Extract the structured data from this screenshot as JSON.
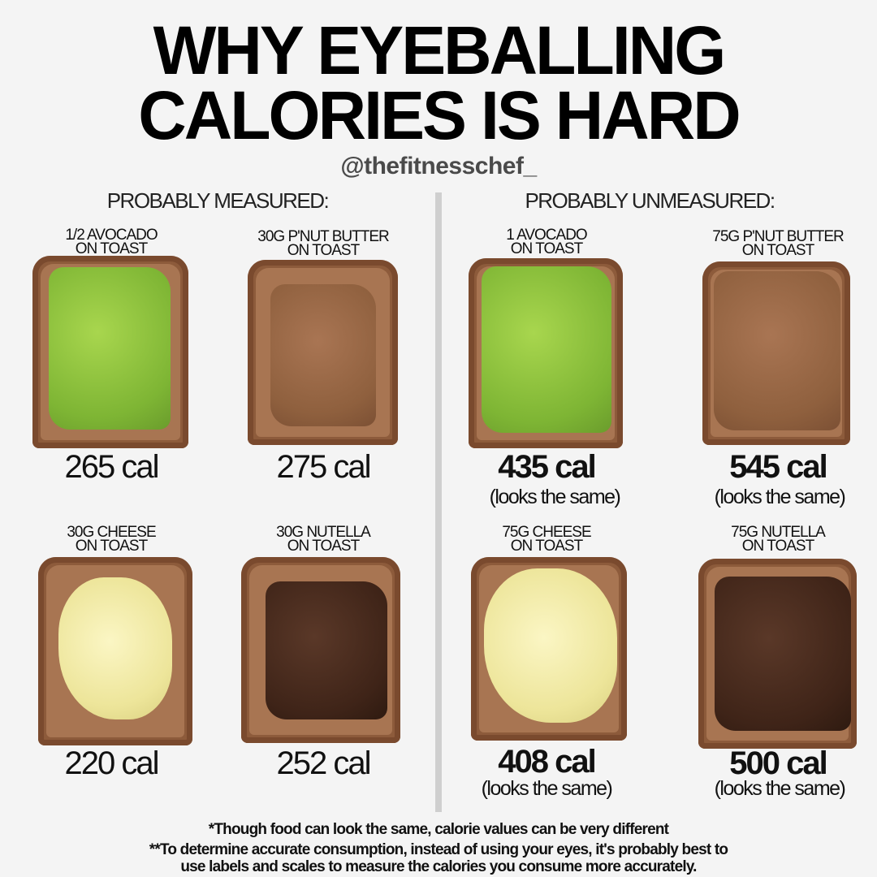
{
  "title": {
    "line1": "WHY EYEBALLING",
    "line2": "CALORIES IS HARD"
  },
  "handle": "@thefitnesschef_",
  "sections": {
    "measured": "PROBABLY MEASURED:",
    "unmeasured": "PROBABLY UNMEASURED:"
  },
  "cards": [
    {
      "label": "1/2 AVOCADO\nON TOAST",
      "calories": "265 cal"
    },
    {
      "label": "30G P'NUT BUTTER\nON TOAST",
      "calories": "275 cal"
    },
    {
      "label": "1 AVOCADO\nON TOAST",
      "calories": "435 cal",
      "note": "(looks the same)"
    },
    {
      "label": "75G P'NUT BUTTER\nON TOAST",
      "calories": "545 cal",
      "note": "(looks the same)"
    },
    {
      "label": "30G CHEESE\nON TOAST",
      "calories": "220 cal"
    },
    {
      "label": "30G NUTELLA\nON TOAST",
      "calories": "252 cal"
    },
    {
      "label": "75G CHEESE\nON TOAST",
      "calories": "408 cal",
      "note": "(looks the same)"
    },
    {
      "label": "75G NUTELLA\nON TOAST",
      "calories": "500 cal",
      "note": "(looks the same)"
    }
  ],
  "footnotes": {
    "line1": "*Though food can look the same, calorie values can be very different",
    "line2": "**To determine accurate consumption, instead of using your eyes, it's probably best to",
    "line3": "use labels and scales to measure the calories you consume more accurately."
  }
}
